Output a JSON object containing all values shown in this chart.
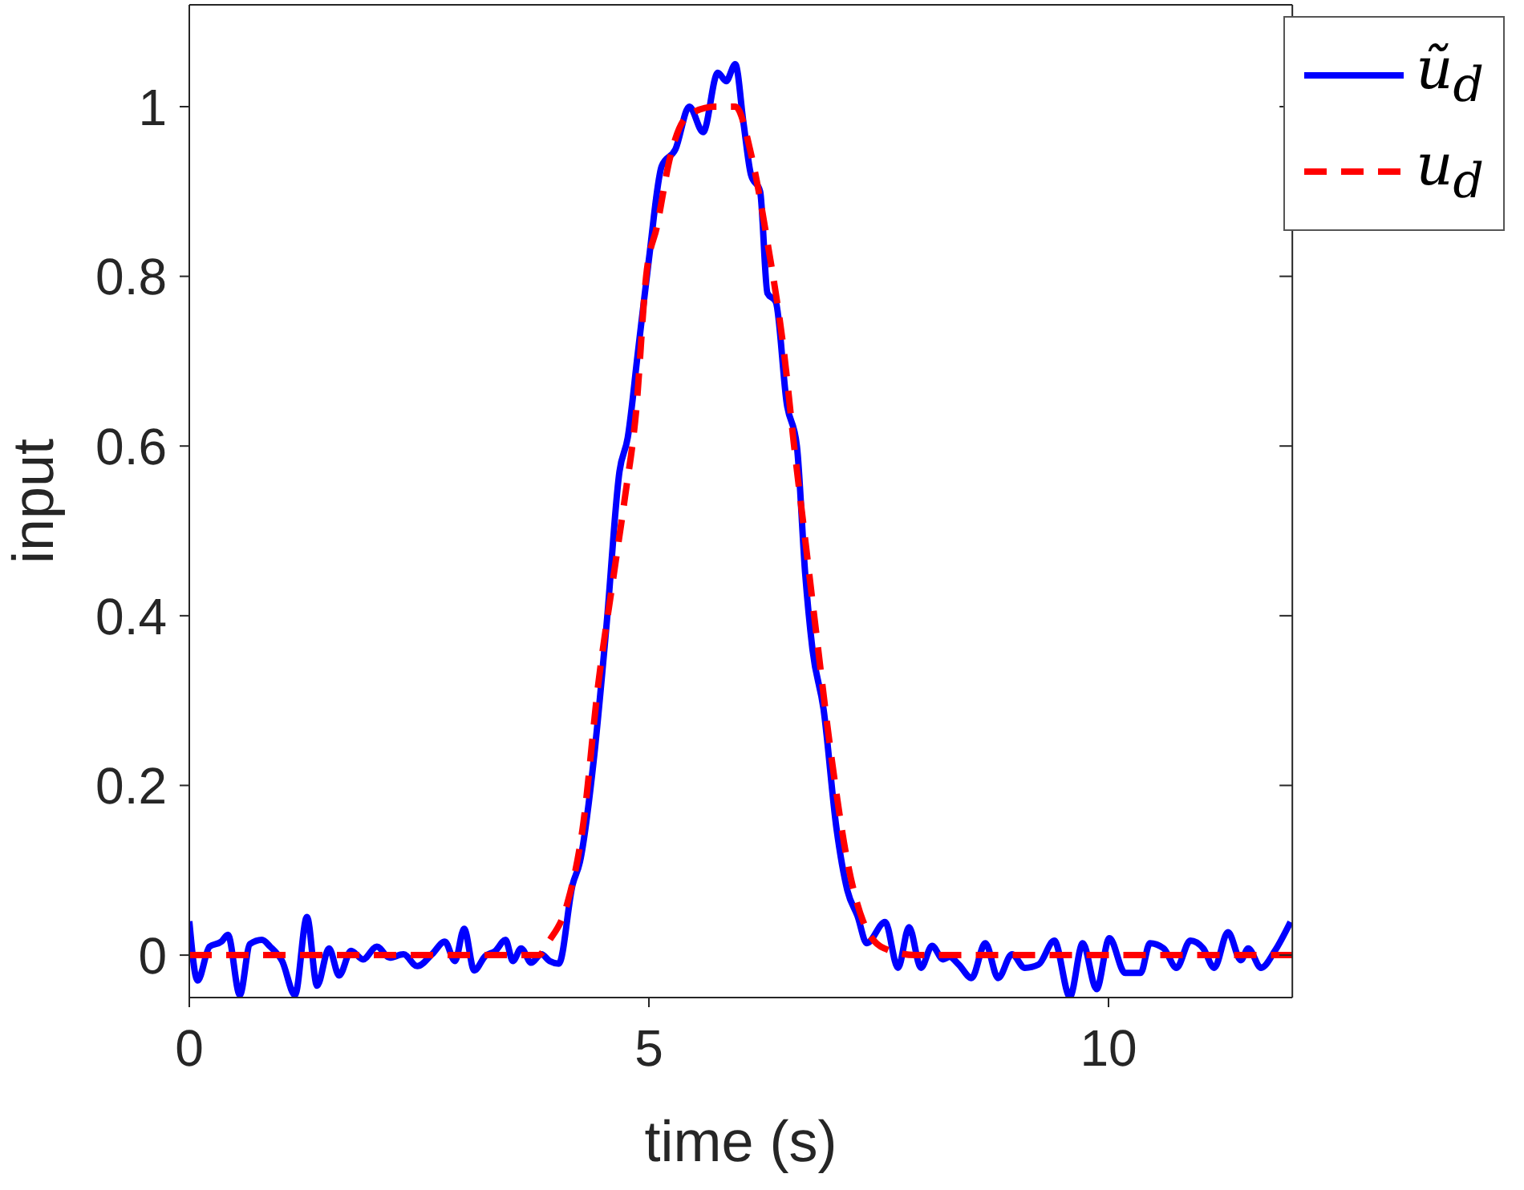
{
  "chart_data": {
    "type": "line",
    "xlabel": "time (s)",
    "ylabel": "input",
    "xlim": [
      0,
      12
    ],
    "ylim": [
      -0.05,
      1.12
    ],
    "xticks": [
      0,
      5,
      10
    ],
    "yticks": [
      0,
      0.2,
      0.4,
      0.6,
      0.8,
      1
    ],
    "legend": "top right",
    "marker": "none",
    "series": [
      {
        "name": "ũ$_{d}$",
        "color": "#0000ff",
        "line_style": "solid",
        "x": [
          0,
          0.09,
          0.22,
          0.35,
          0.42,
          0.55,
          0.66,
          0.79,
          0.88,
          1.01,
          1.15,
          1.28,
          1.39,
          1.52,
          1.63,
          1.76,
          1.89,
          2.04,
          2.18,
          2.33,
          2.48,
          2.64,
          2.78,
          2.89,
          2.99,
          3.1,
          3.22,
          3.33,
          3.44,
          3.52,
          3.61,
          3.72,
          3.83,
          3.92,
          4.02,
          4.17,
          4.25,
          4.4,
          4.54,
          4.68,
          4.77,
          4.88,
          5,
          5.14,
          5.29,
          5.44,
          5.59,
          5.75,
          5.84,
          5.94,
          6.03,
          6.11,
          6.21,
          6.29,
          6.38,
          6.5,
          6.61,
          6.7,
          6.78,
          6.9,
          7.04,
          7.16,
          7.27,
          7.37,
          7.57,
          7.71,
          7.83,
          7.96,
          8.08,
          8.2,
          8.27,
          8.37,
          8.51,
          8.66,
          8.8,
          8.95,
          9.09,
          9.24,
          9.41,
          9.58,
          9.72,
          9.87,
          10.01,
          10.18,
          10.35,
          10.45,
          10.6,
          10.74,
          10.89,
          11.03,
          11.15,
          11.3,
          11.44,
          11.52,
          11.66,
          11.81,
          11.98
        ],
        "values": [
          0.04,
          -0.03,
          0.01,
          0.016,
          0.024,
          -0.047,
          0.013,
          0.018,
          0.01,
          -0.007,
          -0.047,
          0.045,
          -0.036,
          0.008,
          -0.024,
          0.005,
          -0.005,
          0.01,
          -0.003,
          0.001,
          -0.013,
          0.001,
          0.016,
          -0.007,
          0.031,
          -0.018,
          -0.001,
          0.005,
          0.018,
          -0.007,
          0.008,
          -0.009,
          0.001,
          -0.007,
          -0.01,
          0.083,
          0.11,
          0.23,
          0.39,
          0.57,
          0.61,
          0.71,
          0.82,
          0.93,
          0.95,
          1,
          0.97,
          1.04,
          1.03,
          1.05,
          0.98,
          0.92,
          0.9,
          0.78,
          0.77,
          0.65,
          0.6,
          0.45,
          0.36,
          0.29,
          0.15,
          0.076,
          0.046,
          0.014,
          0.039,
          -0.015,
          0.033,
          -0.015,
          0.011,
          -0.005,
          -0.002,
          -0.011,
          -0.027,
          0.014,
          -0.027,
          0.001,
          -0.015,
          -0.011,
          0.017,
          -0.049,
          0.014,
          -0.04,
          0.02,
          -0.021,
          -0.021,
          0.014,
          0.008,
          -0.015,
          0.017,
          0.008,
          -0.015,
          0.027,
          -0.006,
          0.008,
          -0.015,
          0.005,
          0.039
        ]
      },
      {
        "name": "u$_{d}$",
        "color": "#ff0000",
        "line_style": "dashed",
        "x": [
          0,
          3.8,
          3.91,
          4.11,
          4.28,
          4.45,
          4.62,
          4.74,
          4.86,
          4.97,
          5.09,
          5.23,
          5.43,
          5.72,
          5.94,
          6.12,
          6.29,
          6.47,
          6.58,
          6.7,
          6.82,
          6.99,
          7.16,
          7.33,
          7.56,
          7.9,
          12
        ],
        "values": [
          0,
          0,
          0.016,
          0.06,
          0.15,
          0.32,
          0.45,
          0.54,
          0.64,
          0.8,
          0.86,
          0.94,
          0.99,
          1,
          1,
          0.94,
          0.84,
          0.71,
          0.6,
          0.49,
          0.38,
          0.23,
          0.11,
          0.04,
          0.008,
          0,
          0
        ]
      }
    ]
  }
}
